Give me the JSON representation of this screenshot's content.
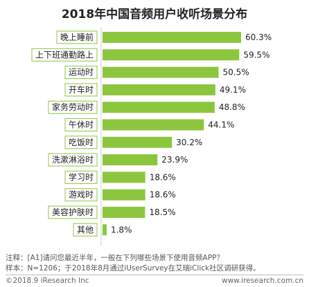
{
  "chart_data": {
    "type": "bar",
    "orientation": "horizontal",
    "title": "2018年中国音频用户收听场景分布",
    "categories": [
      "晚上睡前",
      "上下班通勤路上",
      "运动时",
      "开车时",
      "家务劳动时",
      "午休时",
      "吃饭时",
      "洗漱淋浴时",
      "学习时",
      "游戏时",
      "美容护肤时",
      "其他"
    ],
    "values": [
      60.3,
      59.5,
      50.5,
      49.1,
      48.8,
      44.1,
      30.2,
      23.9,
      18.6,
      18.6,
      18.5,
      1.8
    ],
    "value_labels": [
      "60.3%",
      "59.5%",
      "50.5%",
      "49.1%",
      "48.8%",
      "44.1%",
      "30.2%",
      "23.9%",
      "18.6%",
      "18.6%",
      "18.5%",
      "1.8%"
    ],
    "xlim": [
      0,
      70
    ],
    "grid": false,
    "legend": "none",
    "bar_color": "#8CC63F",
    "label_box_color": "#8CC63F"
  },
  "notes": {
    "line1": "注释：[A1]请问您最近半年，一般在下列哪些场景下使用音频APP？",
    "line2": "样本：N=1206；于2018年8月通过iUserSurvey在艾瑞iClick社区调研获得。"
  },
  "footer": {
    "left": "©2018.9 iResearch Inc",
    "right": "www.iresearch.com.cn"
  }
}
